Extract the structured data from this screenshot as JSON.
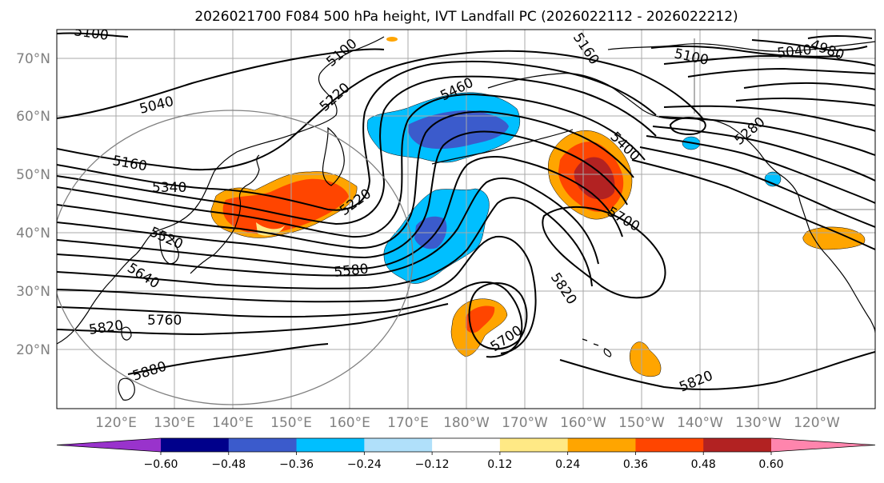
{
  "title": "2026021700 F084 500 hPa height, IVT Landfall PC (2026022112 - 2026022212)",
  "lat_labels": [
    "70°N",
    "60°N",
    "50°N",
    "40°N",
    "30°N",
    "20°N"
  ],
  "lon_labels": [
    "120°E",
    "130°E",
    "140°E",
    "150°E",
    "160°E",
    "170°E",
    "180°W",
    "170°W",
    "160°W",
    "150°W",
    "140°W",
    "130°W",
    "120°W"
  ],
  "contour_labels": [
    "5100",
    "5040",
    "5160",
    "5340",
    "5220",
    "5520",
    "5640",
    "5760",
    "5820",
    "5880",
    "5580",
    "5460",
    "5400",
    "5700",
    "5820",
    "5700",
    "5820",
    "5160",
    "5100",
    "5040",
    "4980",
    "5280",
    "5220",
    "5100"
  ],
  "colorbar": {
    "ticks": [
      "−0.60",
      "−0.48",
      "−0.36",
      "−0.24",
      "−0.12",
      "0.12",
      "0.24",
      "0.36",
      "0.48",
      "0.60"
    ],
    "colors": [
      "#9933cc",
      "#00008b",
      "#3b5bcc",
      "#00bfff",
      "#b0e0fa",
      "#ffffff",
      "#ffe985",
      "#ffa500",
      "#ff4500",
      "#b22222",
      "#ff85ad"
    ]
  },
  "colors": {
    "light_yellow": "#ffe985",
    "orange": "#ffa500",
    "red_orange": "#ff4500",
    "dark_red": "#b22222",
    "light_blue": "#b0e0fa",
    "deep_sky_blue": "#00bfff",
    "royal_blue": "#3b5bcc",
    "navy": "#00008b"
  }
}
